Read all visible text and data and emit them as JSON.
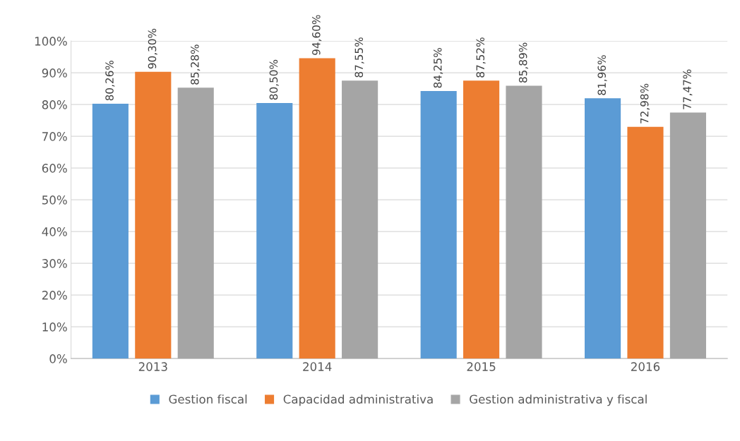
{
  "chart_data": {
    "type": "bar",
    "categories": [
      "2013",
      "2014",
      "2015",
      "2016"
    ],
    "series": [
      {
        "name": "Gestion fiscal",
        "color": "#5b9bd5",
        "values": [
          80.26,
          80.5,
          84.25,
          81.96
        ],
        "value_labels": [
          "80,26%",
          "80,50%",
          "84,25%",
          "81,96%"
        ]
      },
      {
        "name": "Capacidad administrativa",
        "color": "#ed7d31",
        "values": [
          90.3,
          94.6,
          87.52,
          72.98
        ],
        "value_labels": [
          "90,30%",
          "94,60%",
          "87,52%",
          "72,98%"
        ]
      },
      {
        "name": "Gestion administrativa y fiscal",
        "color": "#a5a5a5",
        "values": [
          85.28,
          87.55,
          85.89,
          77.47
        ],
        "value_labels": [
          "85,28%",
          "87,55%",
          "85,89%",
          "77,47%"
        ]
      }
    ],
    "ylim": [
      0,
      100
    ],
    "yticks": [
      {
        "value": 0,
        "label": "0%"
      },
      {
        "value": 10,
        "label": "10%"
      },
      {
        "value": 20,
        "label": "20%"
      },
      {
        "value": 30,
        "label": "30%"
      },
      {
        "value": 40,
        "label": "40%"
      },
      {
        "value": 50,
        "label": "50%"
      },
      {
        "value": 60,
        "label": "60%"
      },
      {
        "value": 70,
        "label": "70%"
      },
      {
        "value": 80,
        "label": "80%"
      },
      {
        "value": 90,
        "label": "90%"
      },
      {
        "value": 100,
        "label": "100%"
      }
    ],
    "grid": "y",
    "legend": "bottom"
  }
}
